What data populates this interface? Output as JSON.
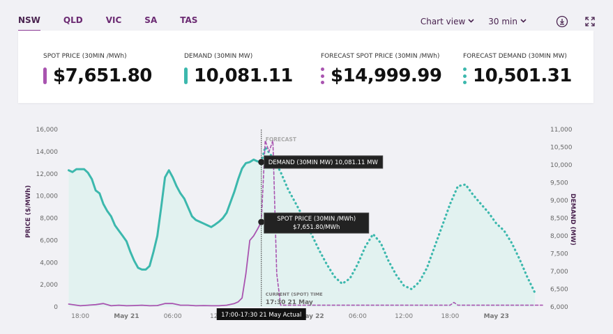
{
  "tabs": [
    "NSW",
    "QLD",
    "VIC",
    "SA",
    "TAS"
  ],
  "active_tab": "NSW",
  "controls": {
    "chart_view": "Chart view",
    "interval": "30 min",
    "download_icon": "download-icon",
    "expand_icon": "expand-icon"
  },
  "metrics": [
    {
      "label": "SPOT PRICE (30MIN /MWh)",
      "value": "$7,651.80",
      "color": "#a954b0",
      "style": "solid"
    },
    {
      "label": "DEMAND (30MIN MW)",
      "value": "10,081.11",
      "color": "#3cb8ad",
      "style": "solid"
    },
    {
      "label": "FORECAST SPOT PRICE (30MIN /MWh)",
      "value": "$14,999.99",
      "color": "#a954b0",
      "style": "dotted"
    },
    {
      "label": "FORECAST DEMAND (30MIN MW)",
      "value": "10,501.31",
      "color": "#3cb8ad",
      "style": "dotted"
    }
  ],
  "colors": {
    "price": "#a954b0",
    "demand": "#3cb8ad",
    "demand_fill": "#dff2ef",
    "tab_accent": "#8b3a95",
    "text_purple": "#4a2450"
  },
  "chart_data": {
    "type": "line",
    "x_ticks": [
      "18:00",
      "May 21",
      "06:00",
      "12:00",
      "18:00",
      "May 22",
      "06:00",
      "12:00",
      "18:00",
      "May 23"
    ],
    "x_range_hours": [
      -2,
      60
    ],
    "current_time_hours": 23.5,
    "ylabel_left": "PRICE ($/MWh)",
    "ylabel_right": "DEMAND (MW)",
    "ylim_left": [
      0,
      16000
    ],
    "ylim_right": [
      6000,
      11000
    ],
    "left_ticks": [
      0,
      2000,
      4000,
      6000,
      8000,
      10000,
      12000,
      14000,
      16000
    ],
    "right_ticks": [
      6000,
      6500,
      7000,
      7500,
      8000,
      8500,
      9000,
      9500,
      10000,
      10500,
      11000
    ],
    "left_tick_labels": [
      "0",
      "2,000",
      "4,000",
      "6,000",
      "8,000",
      "10,000",
      "12,000",
      "14,000",
      "16,000"
    ],
    "right_tick_labels": [
      "6,000",
      "6,500",
      "7,000",
      "7,500",
      "8,000",
      "8,500",
      "9,000",
      "9,500",
      "10,000",
      "10,500",
      "11,000"
    ],
    "series": [
      {
        "name": "DEMAND (30MIN MW)",
        "axis": "right",
        "style": "solid",
        "x": [
          -1.5,
          -1,
          -0.5,
          0,
          0.5,
          1,
          1.5,
          2,
          2.5,
          3,
          3.5,
          4,
          4.5,
          5,
          5.5,
          6,
          6.5,
          7,
          7.5,
          8,
          8.5,
          9,
          9.5,
          10,
          10.5,
          11,
          11.5,
          12,
          12.5,
          13,
          13.5,
          14,
          14.5,
          15,
          15.5,
          16,
          16.5,
          17,
          17.5,
          18,
          18.5,
          19,
          19.5,
          20,
          20.5,
          21,
          21.5,
          22,
          22.5,
          23,
          23.5
        ],
        "values": [
          9850,
          9800,
          9880,
          9880,
          9880,
          9780,
          9600,
          9280,
          9200,
          8900,
          8700,
          8550,
          8300,
          8150,
          8000,
          7850,
          7550,
          7300,
          7100,
          7050,
          7050,
          7150,
          7550,
          8000,
          8800,
          9650,
          9850,
          9650,
          9400,
          9200,
          9050,
          8800,
          8550,
          8450,
          8400,
          8350,
          8300,
          8250,
          8320,
          8400,
          8500,
          8650,
          8950,
          9250,
          9600,
          9900,
          10050,
          10080,
          10150,
          10100,
          10080
        ]
      },
      {
        "name": "FORECAST DEMAND (30MIN MW)",
        "axis": "right",
        "style": "dotted",
        "x": [
          23.5,
          24,
          25,
          26,
          27,
          28,
          29,
          30,
          31,
          32,
          33,
          34,
          35,
          36,
          37,
          38,
          39,
          40,
          41,
          42,
          43,
          44,
          45,
          46,
          47,
          48,
          49,
          50,
          51,
          52,
          53,
          54,
          55,
          56,
          57,
          58,
          59
        ],
        "values": [
          10080,
          10500,
          10200,
          9800,
          9300,
          8900,
          8500,
          8050,
          7600,
          7200,
          6850,
          6650,
          6800,
          7200,
          7700,
          8050,
          7800,
          7300,
          6900,
          6600,
          6500,
          6700,
          7100,
          7700,
          8300,
          8900,
          9400,
          9450,
          9150,
          8900,
          8650,
          8350,
          8150,
          7800,
          7350,
          6850,
          6400
        ]
      },
      {
        "name": "SPOT PRICE (30MIN /MWh)",
        "axis": "left",
        "style": "solid",
        "x": [
          -1.5,
          0,
          1,
          2,
          3,
          4,
          5,
          6,
          7,
          8,
          9,
          10,
          11,
          12,
          13,
          14,
          15,
          16,
          17,
          18,
          19,
          20,
          20.5,
          21,
          21.5,
          22,
          22.5,
          23,
          23.5
        ],
        "values": [
          250,
          100,
          150,
          200,
          300,
          100,
          150,
          100,
          120,
          150,
          100,
          120,
          300,
          300,
          150,
          150,
          100,
          120,
          100,
          100,
          150,
          300,
          450,
          800,
          3000,
          6000,
          6400,
          7000,
          7651.8
        ]
      },
      {
        "name": "FORECAST SPOT PRICE (30MIN /MWh)",
        "axis": "left",
        "style": "dashed",
        "x": [
          23.5,
          24,
          24.5,
          25,
          25.5,
          26,
          27,
          28,
          30,
          34,
          38,
          42,
          46,
          48,
          48.5,
          49,
          50,
          54,
          58,
          60
        ],
        "values": [
          7651.8,
          14999.99,
          14000,
          15000,
          3000,
          150,
          150,
          150,
          150,
          150,
          150,
          150,
          150,
          150,
          400,
          150,
          150,
          150,
          150,
          150
        ]
      }
    ],
    "annotations": {
      "forecast_label": "FORECAST",
      "current_label": "CURRENT (SPOT) TIME",
      "current_time_text": "17:30 21 May",
      "tooltip_demand_title": "DEMAND (30MIN MW)",
      "tooltip_demand_value": "10,081.11 MW",
      "tooltip_price_title": "SPOT PRICE (30MIN /MWh)",
      "tooltip_price_value": "$7,651.80/MWh",
      "time_tooltip": "17:00-17:30 21 May Actual"
    }
  }
}
